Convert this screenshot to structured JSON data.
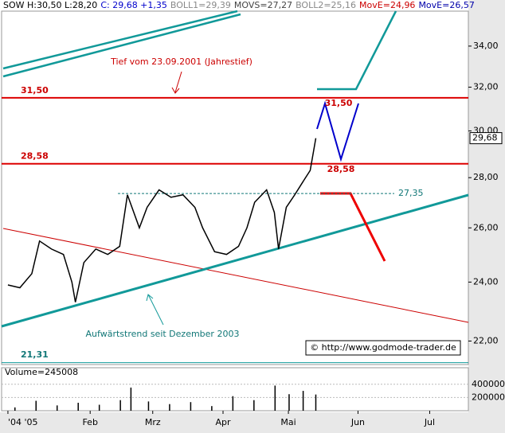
{
  "chart_data": {
    "type": "line",
    "header": [
      {
        "text": "SOW H:30,50 L:28,20",
        "color": "#000000"
      },
      {
        "text": "C: 29,68 +1,35",
        "color": "#0000cc"
      },
      {
        "text": "BOLL1=29,39",
        "color": "#888888"
      },
      {
        "text": "MOVS=27,27",
        "color": "#444444"
      },
      {
        "text": "BOLL2=25,16",
        "color": "#888888"
      },
      {
        "text": "MovE=24,96",
        "color": "#cc0000"
      },
      {
        "text": "MovE=26,57",
        "color": "#0000aa"
      }
    ],
    "log_scale": true,
    "x": [
      0,
      0.17,
      0.34,
      0.45,
      0.62,
      0.79,
      0.91,
      0.96,
      1.08,
      1.25,
      1.42,
      1.59,
      1.7,
      1.87,
      1.98,
      2.15,
      2.32,
      2.49,
      2.66,
      2.77,
      2.94,
      3.11,
      3.28,
      3.4,
      3.51,
      3.68,
      3.79,
      3.85,
      3.96,
      4.08,
      4.19,
      4.3,
      4.38
    ],
    "series": [
      {
        "name": "SOW",
        "color": "#000000",
        "values": [
          23.9,
          23.8,
          24.3,
          25.5,
          25.2,
          25.0,
          24.0,
          23.3,
          24.7,
          25.2,
          25.0,
          25.3,
          27.3,
          26.0,
          26.8,
          27.5,
          27.2,
          27.3,
          26.8,
          26.0,
          25.1,
          25.0,
          25.3,
          26.0,
          27.0,
          27.5,
          26.6,
          25.2,
          26.8,
          27.3,
          27.8,
          28.3,
          29.68
        ]
      }
    ],
    "xlim": [
      -0.09,
      6.55
    ],
    "xticks": [
      {
        "value": 0,
        "label": "'04 '05"
      },
      {
        "value": 1.17,
        "label": "Feb"
      },
      {
        "value": 2.06,
        "label": "Mrz"
      },
      {
        "value": 3.06,
        "label": "Apr"
      },
      {
        "value": 3.99,
        "label": "Mai"
      },
      {
        "value": 4.98,
        "label": "Jun"
      },
      {
        "value": 6.0,
        "label": "Jul"
      }
    ],
    "ylim": [
      21.25,
      35.8
    ],
    "yticks": [
      {
        "value": 22,
        "label": "22,00"
      },
      {
        "value": 24,
        "label": "24,00"
      },
      {
        "value": 26,
        "label": "26,00"
      },
      {
        "value": 28,
        "label": "28,00"
      },
      {
        "value": 30,
        "label": "30,00"
      },
      {
        "value": 32,
        "label": "32,00"
      },
      {
        "value": 34,
        "label": "34,00"
      }
    ],
    "last_price": {
      "value": 29.68,
      "label": "29,68"
    },
    "levels": [
      {
        "value": 31.5,
        "label": "31,50"
      },
      {
        "value": 28.58,
        "label": "28,58"
      }
    ],
    "dashed_level": {
      "value": 27.35,
      "label": "27,35"
    },
    "low_label": {
      "value": 21.31,
      "label": "21,31"
    },
    "projection_labels": [
      "31,50",
      "28,58"
    ],
    "annotations": [
      "Tief vom 23.09.2001 (Jahrestief)",
      "Aufwärtstrend seit Dezember 2003"
    ],
    "source": "© http://www.godmode-trader.de",
    "volume": {
      "label": "Volume=245008",
      "x": [
        0.1,
        0.4,
        0.7,
        1.0,
        1.3,
        1.6,
        1.75,
        2.0,
        2.3,
        2.6,
        2.9,
        3.2,
        3.5,
        3.8,
        4.0,
        4.2,
        4.38
      ],
      "values": [
        50000,
        150000,
        80000,
        120000,
        90000,
        160000,
        350000,
        140000,
        100000,
        130000,
        70000,
        220000,
        160000,
        380000,
        250000,
        300000,
        245008
      ],
      "ylim": [
        0,
        650000
      ],
      "yticks": [
        {
          "value": 200000,
          "label": "200000"
        },
        {
          "value": 400000,
          "label": "400000"
        }
      ]
    }
  }
}
